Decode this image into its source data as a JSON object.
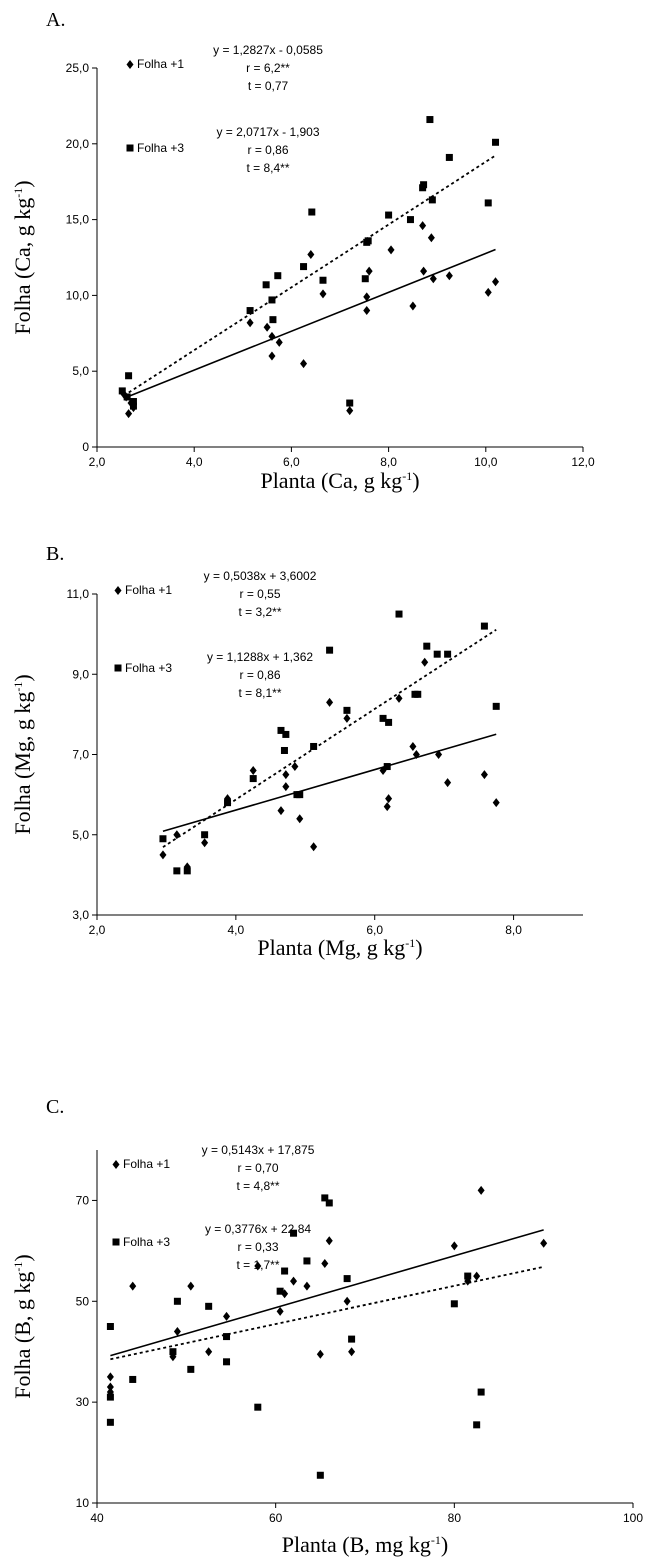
{
  "chart_data": [
    {
      "type": "scatter",
      "panel_label": "A.",
      "xlabel_main": "Planta (Ca, g kg",
      "xlabel_sup": "-1",
      "xlabel_end": ")",
      "ylabel_main": "Folha (Ca, g kg",
      "ylabel_sup": "-1",
      "ylabel_end": ")",
      "xlim": [
        2,
        12
      ],
      "ylim": [
        0,
        25
      ],
      "xticks": [
        "2,0",
        "4,0",
        "6,0",
        "8,0",
        "10,0",
        "12,0"
      ],
      "yticks": [
        "0",
        "5,0",
        "10,0",
        "15,0",
        "20,0",
        "25,0"
      ],
      "grid": false,
      "series": [
        {
          "name": "Folha +1",
          "marker": "diamond",
          "line_style": "solid",
          "equation": "y = 1,2827x - 0,0585",
          "r": "r = 6,2**",
          "t": "t = 0,77",
          "slope": 1.2827,
          "intercept": -0.0585,
          "fit_range": [
            2.55,
            10.2
          ],
          "points": [
            [
              2.6,
              3.3
            ],
            [
              2.65,
              2.2
            ],
            [
              2.7,
              2.9
            ],
            [
              2.75,
              2.6
            ],
            [
              2.55,
              3.5
            ],
            [
              5.15,
              8.2
            ],
            [
              5.5,
              7.9
            ],
            [
              5.6,
              7.3
            ],
            [
              5.6,
              6.0
            ],
            [
              5.75,
              6.9
            ],
            [
              6.25,
              5.5
            ],
            [
              6.4,
              12.7
            ],
            [
              6.65,
              10.1
            ],
            [
              7.2,
              2.4
            ],
            [
              7.55,
              9.9
            ],
            [
              7.55,
              9.0
            ],
            [
              7.6,
              11.6
            ],
            [
              8.05,
              13.0
            ],
            [
              8.5,
              9.3
            ],
            [
              8.7,
              14.6
            ],
            [
              8.72,
              11.6
            ],
            [
              8.88,
              13.8
            ],
            [
              8.92,
              11.1
            ],
            [
              9.25,
              11.3
            ],
            [
              10.05,
              10.2
            ],
            [
              10.2,
              10.9
            ]
          ]
        },
        {
          "name": "Folha +3",
          "marker": "square",
          "line_style": "dotted",
          "equation": "y = 2,0717x - 1,903",
          "r": "r = 0,86",
          "t": "t = 8,4**",
          "slope": 2.0717,
          "intercept": -1.903,
          "fit_range": [
            2.55,
            10.2
          ],
          "points": [
            [
              2.52,
              3.7
            ],
            [
              2.62,
              3.3
            ],
            [
              2.65,
              4.7
            ],
            [
              2.75,
              3.0
            ],
            [
              2.75,
              2.7
            ],
            [
              5.15,
              9.0
            ],
            [
              5.48,
              10.7
            ],
            [
              5.6,
              9.7
            ],
            [
              5.62,
              8.4
            ],
            [
              5.72,
              11.3
            ],
            [
              6.25,
              11.9
            ],
            [
              6.42,
              15.5
            ],
            [
              6.65,
              11.0
            ],
            [
              7.2,
              2.9
            ],
            [
              7.52,
              11.1
            ],
            [
              7.55,
              13.5
            ],
            [
              7.58,
              13.6
            ],
            [
              8.0,
              15.3
            ],
            [
              8.45,
              15.0
            ],
            [
              8.7,
              17.1
            ],
            [
              8.72,
              17.3
            ],
            [
              8.85,
              21.6
            ],
            [
              8.9,
              16.3
            ],
            [
              9.25,
              19.1
            ],
            [
              10.05,
              16.1
            ],
            [
              10.2,
              20.1
            ]
          ]
        }
      ]
    },
    {
      "type": "scatter",
      "panel_label": "B.",
      "xlabel_main": "Planta (Mg, g kg",
      "xlabel_sup": "-1",
      "xlabel_end": ")",
      "ylabel_main": "Folha (Mg, g kg",
      "ylabel_sup": "-1",
      "ylabel_end": ")",
      "xlim": [
        2,
        9
      ],
      "ylim": [
        3,
        11
      ],
      "xticks": [
        "2,0",
        "4,0",
        "6,0",
        "8,0"
      ],
      "yticks": [
        "3,0",
        "5,0",
        "7,0",
        "9,0",
        "11,0"
      ],
      "xtick_values": [
        2,
        4,
        6,
        8
      ],
      "ytick_values": [
        3,
        5,
        7,
        9,
        11
      ],
      "grid": false,
      "series": [
        {
          "name": "Folha +1",
          "marker": "diamond",
          "line_style": "solid",
          "equation": "y = 0,5038x + 3,6002",
          "r": "r = 0,55",
          "t": "t = 3,2**",
          "slope": 0.5038,
          "intercept": 3.6002,
          "fit_range": [
            2.95,
            7.75
          ],
          "points": [
            [
              2.95,
              4.5
            ],
            [
              3.15,
              5.0
            ],
            [
              3.3,
              4.2
            ],
            [
              3.55,
              4.8
            ],
            [
              3.88,
              5.9
            ],
            [
              4.25,
              6.6
            ],
            [
              4.65,
              5.6
            ],
            [
              4.72,
              6.2
            ],
            [
              4.72,
              6.5
            ],
            [
              4.85,
              6.7
            ],
            [
              4.92,
              5.4
            ],
            [
              5.12,
              4.7
            ],
            [
              5.35,
              8.3
            ],
            [
              5.6,
              7.9
            ],
            [
              6.18,
              5.7
            ],
            [
              6.2,
              5.9
            ],
            [
              6.12,
              6.6
            ],
            [
              6.35,
              8.4
            ],
            [
              6.55,
              7.2
            ],
            [
              6.6,
              7.0
            ],
            [
              6.72,
              9.3
            ],
            [
              6.92,
              7.0
            ],
            [
              7.05,
              6.3
            ],
            [
              7.58,
              6.5
            ],
            [
              7.75,
              5.8
            ]
          ]
        },
        {
          "name": "Folha +3",
          "marker": "square",
          "line_style": "dotted",
          "equation": "y = 1,1288x + 1,362",
          "r": "r = 0,86",
          "t": "t = 8,1**",
          "slope": 1.1288,
          "intercept": 1.362,
          "fit_range": [
            2.95,
            7.75
          ],
          "points": [
            [
              2.95,
              4.9
            ],
            [
              3.15,
              4.1
            ],
            [
              3.3,
              4.1
            ],
            [
              3.55,
              5.0
            ],
            [
              3.88,
              5.8
            ],
            [
              4.25,
              6.4
            ],
            [
              4.65,
              7.6
            ],
            [
              4.7,
              7.1
            ],
            [
              4.72,
              7.5
            ],
            [
              4.88,
              6.0
            ],
            [
              4.92,
              6.0
            ],
            [
              5.12,
              7.2
            ],
            [
              5.35,
              9.6
            ],
            [
              5.6,
              8.1
            ],
            [
              6.12,
              7.9
            ],
            [
              6.2,
              7.8
            ],
            [
              6.18,
              6.7
            ],
            [
              6.35,
              10.5
            ],
            [
              6.58,
              8.5
            ],
            [
              6.62,
              8.5
            ],
            [
              6.75,
              9.7
            ],
            [
              6.9,
              9.5
            ],
            [
              7.05,
              9.5
            ],
            [
              7.58,
              10.2
            ],
            [
              7.75,
              8.2
            ]
          ]
        }
      ]
    },
    {
      "type": "scatter",
      "panel_label": "C.",
      "xlabel_main": "Planta (B, mg kg",
      "xlabel_sup": "-1",
      "xlabel_end": ")",
      "ylabel_main": "Folha (B, g kg",
      "ylabel_sup": "-1",
      "ylabel_end": ")",
      "xlim": [
        40,
        100
      ],
      "ylim": [
        10,
        80
      ],
      "xticks": [
        "40",
        "60",
        "80",
        "100"
      ],
      "yticks": [
        "10",
        "30",
        "50",
        "70"
      ],
      "xtick_values": [
        40,
        60,
        80,
        100
      ],
      "ytick_values": [
        10,
        30,
        50,
        70
      ],
      "grid": false,
      "series": [
        {
          "name": "Folha +1",
          "marker": "diamond",
          "line_style": "solid",
          "equation": "y = 0,5143x + 17,875",
          "r": "r = 0,70",
          "t": "t = 4,8**",
          "slope": 0.5143,
          "intercept": 17.875,
          "fit_range": [
            41.5,
            90
          ],
          "points": [
            [
              41.5,
              33
            ],
            [
              41.5,
              35
            ],
            [
              41.5,
              32
            ],
            [
              44,
              53
            ],
            [
              48.5,
              39
            ],
            [
              49,
              44
            ],
            [
              50.5,
              53
            ],
            [
              52.5,
              40
            ],
            [
              54.5,
              47
            ],
            [
              58,
              57
            ],
            [
              60.5,
              48
            ],
            [
              61,
              51.5
            ],
            [
              62,
              54
            ],
            [
              63.5,
              53
            ],
            [
              65,
              39.5
            ],
            [
              65.5,
              57.5
            ],
            [
              66,
              62
            ],
            [
              68,
              50
            ],
            [
              68.5,
              40
            ],
            [
              80,
              61
            ],
            [
              81.5,
              54
            ],
            [
              82.5,
              55
            ],
            [
              83,
              72
            ],
            [
              90,
              61.5
            ]
          ]
        },
        {
          "name": "Folha +3",
          "marker": "square",
          "line_style": "dotted",
          "equation": "y = 0,3776x + 22,84",
          "r": "r = 0,33",
          "t": "t = 1,7**",
          "slope": 0.3776,
          "intercept": 22.84,
          "fit_range": [
            41.5,
            90
          ],
          "points": [
            [
              41.5,
              45
            ],
            [
              41.5,
              31
            ],
            [
              41.5,
              26
            ],
            [
              44,
              34.5
            ],
            [
              48.5,
              40
            ],
            [
              49,
              50
            ],
            [
              50.5,
              36.5
            ],
            [
              52.5,
              49
            ],
            [
              54.5,
              43
            ],
            [
              54.5,
              38
            ],
            [
              58,
              29
            ],
            [
              60.5,
              52
            ],
            [
              61,
              56
            ],
            [
              62,
              63.5
            ],
            [
              63.5,
              58
            ],
            [
              65,
              15.5
            ],
            [
              65.5,
              70.5
            ],
            [
              66,
              69.5
            ],
            [
              68,
              54.5
            ],
            [
              68.5,
              42.5
            ],
            [
              80,
              49.5
            ],
            [
              81.5,
              55
            ],
            [
              82.5,
              25.5
            ],
            [
              83,
              32
            ]
          ]
        }
      ]
    }
  ]
}
